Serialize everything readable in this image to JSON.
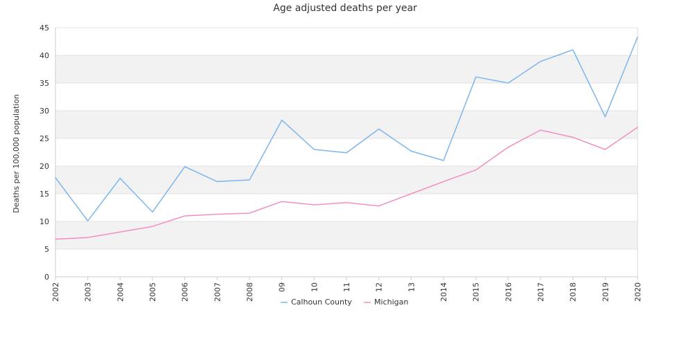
{
  "chart_data": {
    "type": "line",
    "title": "Age adjusted deaths per year",
    "xlabel": "",
    "ylabel": "Deaths per 100,000 population",
    "ylim": [
      0,
      45
    ],
    "yticks": [
      0,
      5,
      10,
      15,
      20,
      25,
      30,
      35,
      40,
      45
    ],
    "categories": [
      "2002",
      "2003",
      "2004",
      "2005",
      "2006",
      "2007",
      "2008",
      "09",
      "10",
      "11",
      "12",
      "13",
      "2014",
      "2015",
      "2016",
      "2017",
      "2018",
      "2019",
      "2020"
    ],
    "grid": "alternating horizontal bands",
    "legend_position": "bottom",
    "series": [
      {
        "name": "Calhoun County",
        "color": "#7cb5ec",
        "values": [
          17.9,
          10.1,
          17.8,
          11.7,
          19.9,
          17.2,
          17.5,
          28.3,
          23.0,
          22.4,
          26.7,
          22.7,
          21.0,
          36.1,
          35.0,
          38.9,
          41.0,
          28.9,
          43.3
        ]
      },
      {
        "name": "Michigan",
        "color": "#f28fc0",
        "values": [
          6.8,
          7.1,
          8.1,
          9.1,
          11.0,
          11.3,
          11.5,
          13.6,
          13.0,
          13.4,
          12.8,
          15.0,
          17.2,
          19.3,
          23.4,
          26.5,
          25.2,
          23.0,
          27.0
        ]
      }
    ]
  }
}
